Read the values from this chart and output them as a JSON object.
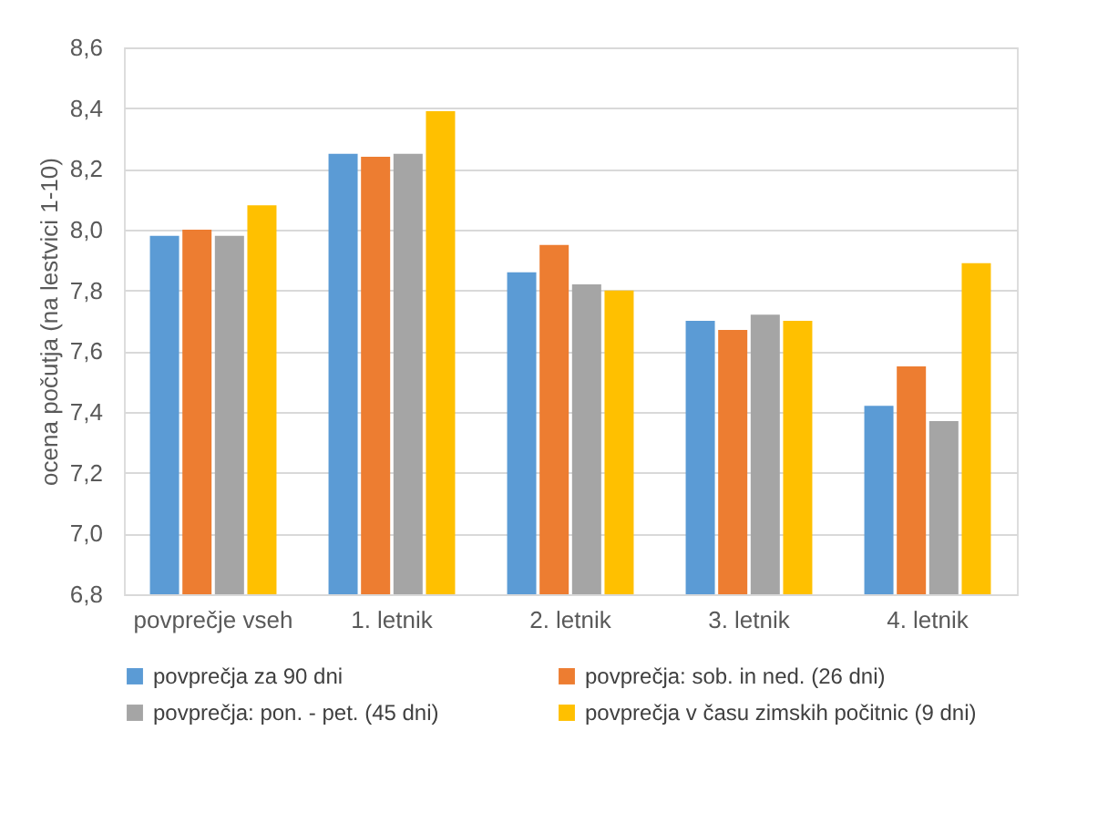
{
  "chart_data": {
    "type": "bar",
    "ylabel": "ocena počutja (na lestvici 1-10)",
    "categories": [
      "povprečje vseh",
      "1. letnik",
      "2. letnik",
      "3. letnik",
      "4. letnik"
    ],
    "series": [
      {
        "name": "povprečja za 90 dni",
        "color": "#5b9bd5",
        "values": [
          7.98,
          8.25,
          7.86,
          7.7,
          7.42
        ]
      },
      {
        "name": "povprečja: sob. in ned. (26 dni)",
        "color": "#ed7d31",
        "values": [
          8.0,
          8.24,
          7.95,
          7.67,
          7.55
        ]
      },
      {
        "name": "povprečja: pon. - pet.  (45 dni)",
        "color": "#a5a5a5",
        "values": [
          7.98,
          8.25,
          7.82,
          7.72,
          7.37
        ]
      },
      {
        "name": "povprečja v času zimskih počitnic (9 dni)",
        "color": "#ffc000",
        "values": [
          8.08,
          8.39,
          7.8,
          7.7,
          7.89
        ]
      }
    ],
    "ylim": [
      6.8,
      8.6
    ],
    "yticks": [
      {
        "value": 6.8,
        "label": "6,8"
      },
      {
        "value": 7.0,
        "label": "7,0"
      },
      {
        "value": 7.2,
        "label": "7,2"
      },
      {
        "value": 7.4,
        "label": "7,4"
      },
      {
        "value": 7.6,
        "label": "7,6"
      },
      {
        "value": 7.8,
        "label": "7,8"
      },
      {
        "value": 8.0,
        "label": "8,0"
      },
      {
        "value": 8.2,
        "label": "8,2"
      },
      {
        "value": 8.4,
        "label": "8,4"
      },
      {
        "value": 8.6,
        "label": "8,6"
      }
    ],
    "grid": "y",
    "legend": "bottom"
  }
}
